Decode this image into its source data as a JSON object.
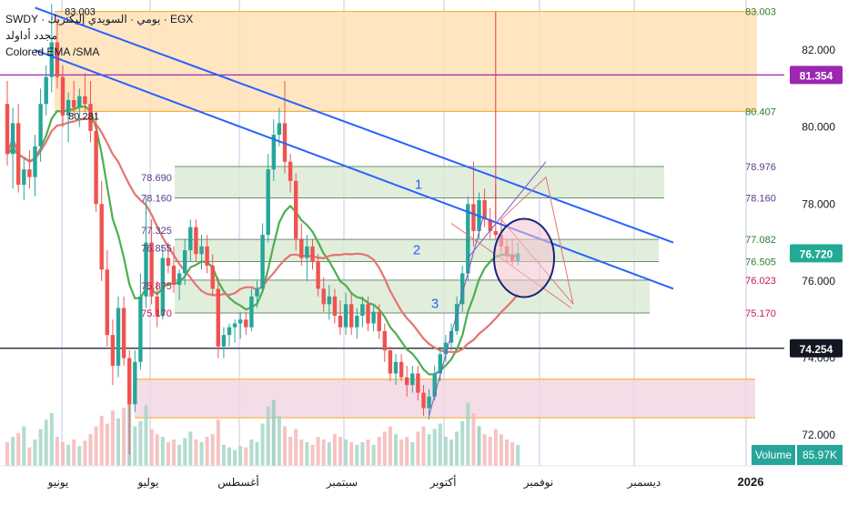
{
  "legend": {
    "symbol_line": "SWDY · يومي · السويدي إليكتريك · EGX",
    "second_line": "مجدد أداولد",
    "indicator": "Colored EMA /SMA"
  },
  "chart_data": {
    "type": "candlestick",
    "symbol": "SWDY",
    "exchange": "EGX",
    "ylim": [
      71.2,
      83.3
    ],
    "price_ticks": [
      "82.000",
      "80.000",
      "78.000",
      "76.000",
      "74.000",
      "72.000"
    ],
    "price_tick_values": [
      82,
      80,
      78,
      76,
      74,
      72
    ],
    "time_labels": [
      "يونيو",
      "يوليو",
      "أغسطس",
      "سبتمبر",
      "أكتوبر",
      "نوفمبر",
      "ديسمبر",
      "2026"
    ],
    "price_badges": [
      {
        "label": "81.354",
        "value": 81.354,
        "color": "#9c27b0"
      },
      {
        "label": "76.720",
        "value": 76.72,
        "color": "#22ab94"
      },
      {
        "label": "74.254",
        "value": 74.254,
        "color": "#131722"
      }
    ],
    "horizontal_lines": [
      {
        "value": 81.354,
        "color": "#9c27b0"
      },
      {
        "value": 74.254,
        "color": "#131722"
      }
    ],
    "zones": [
      {
        "name": "orange",
        "top": 83.003,
        "bottom": 80.407,
        "fill": "#ffe0b2",
        "stroke": "#f5a623"
      },
      {
        "name": "green-1",
        "top": 78.976,
        "bottom": 78.16,
        "fill": "#d9ead3",
        "stroke": "#6d8f6d"
      },
      {
        "name": "green-2",
        "top": 77.082,
        "bottom": 76.505,
        "fill": "#d9ead3",
        "stroke": "#6d8f6d"
      },
      {
        "name": "green-3",
        "top": 76.023,
        "bottom": 75.17,
        "fill": "#d9ead3",
        "stroke": "#6d8f6d"
      },
      {
        "name": "pink",
        "top": 73.45,
        "bottom": 72.45,
        "fill": "#f3d4e1",
        "stroke": "#f5a623"
      }
    ],
    "level_labels": [
      {
        "text": "83.003",
        "value": 83.003,
        "side": "right",
        "color": "#2e7d32"
      },
      {
        "text": "80.407",
        "value": 80.407,
        "side": "right",
        "color": "#2e7d32"
      },
      {
        "text": "78.976",
        "value": 78.976,
        "side": "right",
        "color": "#5b3a8c"
      },
      {
        "text": "78.160",
        "value": 78.16,
        "side": "right",
        "color": "#5b3a8c"
      },
      {
        "text": "77.082",
        "value": 77.082,
        "side": "right",
        "color": "#2e7d32"
      },
      {
        "text": "76.505",
        "value": 76.505,
        "side": "right",
        "color": "#2e7d32"
      },
      {
        "text": "76.023",
        "value": 76.023,
        "side": "right",
        "color": "#c2185b"
      },
      {
        "text": "75.170",
        "value": 75.17,
        "side": "right",
        "color": "#c2185b"
      },
      {
        "text": "78.690",
        "value": 78.69,
        "side": "left",
        "color": "#5b3a8c"
      },
      {
        "text": "78.160",
        "value": 78.16,
        "side": "left",
        "color": "#5b3a8c"
      },
      {
        "text": "77.325",
        "value": 77.325,
        "side": "left",
        "color": "#5b3a8c"
      },
      {
        "text": "76.855",
        "value": 76.855,
        "side": "left",
        "color": "#5b3a8c"
      },
      {
        "text": "75.875",
        "value": 75.875,
        "side": "left",
        "color": "#c2185b"
      },
      {
        "text": "75.170",
        "value": 75.17,
        "side": "left",
        "color": "#c2185b"
      },
      {
        "text": "80.281",
        "value": 80.281,
        "side": "left",
        "color": "#131722"
      },
      {
        "text": "83.003",
        "value": 83.003,
        "side": "left",
        "color": "#131722"
      }
    ],
    "zone_numbers": [
      "1",
      "2",
      "3"
    ],
    "trendlines": [
      {
        "from": [
          5,
          83.1
        ],
        "to": [
          120,
          77.0
        ],
        "color": "#2962ff"
      },
      {
        "from": [
          5,
          82.0
        ],
        "to": [
          120,
          75.8
        ],
        "color": "#2962ff"
      }
    ],
    "ohlc": [
      [
        80.6,
        81.2,
        79.0,
        79.3
      ],
      [
        79.3,
        80.5,
        78.4,
        80.1
      ],
      [
        80.1,
        80.6,
        78.3,
        78.5
      ],
      [
        78.5,
        79.2,
        78.1,
        78.9
      ],
      [
        78.9,
        79.4,
        78.4,
        78.7
      ],
      [
        78.7,
        79.8,
        78.2,
        79.5
      ],
      [
        79.5,
        81.0,
        79.1,
        80.6
      ],
      [
        80.6,
        81.6,
        80.3,
        81.3
      ],
      [
        81.3,
        83.2,
        80.9,
        82.2
      ],
      [
        82.2,
        82.8,
        81.0,
        81.3
      ],
      [
        81.3,
        81.6,
        80.0,
        80.3
      ],
      [
        80.3,
        80.9,
        79.6,
        80.7
      ],
      [
        80.7,
        81.2,
        80.3,
        80.5
      ],
      [
        80.5,
        81.0,
        80.0,
        80.8
      ],
      [
        80.8,
        81.4,
        80.4,
        80.6
      ],
      [
        80.6,
        81.2,
        79.6,
        79.9
      ],
      [
        79.9,
        80.4,
        77.8,
        78.0
      ],
      [
        78.0,
        78.6,
        76.0,
        76.3
      ],
      [
        76.3,
        76.8,
        74.3,
        74.6
      ],
      [
        74.6,
        75.0,
        73.3,
        73.8
      ],
      [
        73.8,
        75.6,
        73.5,
        75.3
      ],
      [
        75.3,
        75.6,
        73.8,
        74.0
      ],
      [
        74.0,
        74.2,
        71.5,
        72.8
      ],
      [
        72.8,
        74.2,
        72.6,
        73.9
      ],
      [
        73.9,
        76.2,
        73.7,
        75.6
      ],
      [
        75.6,
        78.2,
        75.3,
        77.0
      ],
      [
        77.0,
        77.6,
        75.4,
        75.6
      ],
      [
        75.6,
        76.0,
        74.8,
        75.1
      ],
      [
        75.1,
        76.9,
        75.0,
        76.6
      ],
      [
        76.6,
        77.0,
        76.2,
        76.4
      ],
      [
        76.4,
        76.9,
        75.7,
        75.9
      ],
      [
        75.9,
        76.3,
        75.5,
        76.2
      ],
      [
        76.2,
        77.1,
        75.9,
        76.8
      ],
      [
        76.8,
        77.6,
        76.5,
        77.4
      ],
      [
        77.4,
        77.6,
        76.5,
        76.7
      ],
      [
        76.7,
        77.2,
        76.3,
        76.9
      ],
      [
        76.9,
        77.2,
        76.2,
        76.4
      ],
      [
        76.4,
        76.7,
        75.6,
        75.8
      ],
      [
        75.8,
        76.1,
        74.0,
        74.3
      ],
      [
        74.3,
        74.8,
        74.0,
        74.6
      ],
      [
        74.6,
        74.9,
        74.3,
        74.8
      ],
      [
        74.8,
        75.0,
        74.4,
        74.9
      ],
      [
        74.9,
        75.2,
        74.5,
        75.0
      ],
      [
        75.0,
        75.2,
        74.6,
        74.8
      ],
      [
        74.8,
        75.8,
        74.7,
        75.6
      ],
      [
        75.6,
        76.0,
        75.3,
        75.8
      ],
      [
        75.8,
        77.5,
        75.7,
        77.2
      ],
      [
        77.2,
        79.3,
        77.0,
        78.9
      ],
      [
        78.9,
        80.2,
        78.6,
        79.8
      ],
      [
        79.8,
        80.5,
        79.5,
        80.1
      ],
      [
        80.1,
        81.2,
        78.8,
        79.1
      ],
      [
        79.1,
        79.3,
        78.3,
        78.6
      ],
      [
        78.6,
        78.8,
        76.8,
        77.1
      ],
      [
        77.1,
        77.5,
        76.4,
        76.6
      ],
      [
        76.6,
        77.2,
        76.0,
        76.9
      ],
      [
        76.9,
        77.1,
        76.3,
        76.5
      ],
      [
        76.5,
        76.7,
        75.6,
        75.8
      ],
      [
        75.8,
        76.1,
        75.2,
        75.4
      ],
      [
        75.4,
        75.9,
        75.0,
        75.6
      ],
      [
        75.6,
        75.8,
        74.9,
        75.1
      ],
      [
        75.1,
        75.5,
        74.6,
        74.8
      ],
      [
        74.8,
        75.7,
        74.6,
        75.4
      ],
      [
        75.4,
        75.7,
        74.6,
        74.8
      ],
      [
        74.8,
        75.3,
        74.5,
        75.1
      ],
      [
        75.1,
        75.6,
        74.8,
        75.4
      ],
      [
        75.4,
        75.6,
        74.7,
        74.9
      ],
      [
        74.9,
        75.4,
        74.7,
        75.2
      ],
      [
        75.2,
        75.4,
        74.5,
        74.7
      ],
      [
        74.7,
        74.9,
        73.9,
        74.2
      ],
      [
        74.2,
        74.3,
        73.4,
        73.6
      ],
      [
        73.6,
        74.1,
        73.3,
        73.9
      ],
      [
        73.9,
        74.1,
        73.4,
        73.5
      ],
      [
        73.5,
        73.8,
        73.0,
        73.3
      ],
      [
        73.3,
        73.8,
        73.1,
        73.6
      ],
      [
        73.6,
        73.8,
        72.9,
        73.1
      ],
      [
        73.1,
        73.3,
        72.5,
        72.7
      ],
      [
        72.7,
        73.2,
        72.4,
        73.0
      ],
      [
        73.0,
        73.8,
        72.9,
        73.6
      ],
      [
        73.6,
        74.3,
        73.4,
        74.1
      ],
      [
        74.1,
        74.6,
        73.9,
        74.4
      ],
      [
        74.4,
        74.9,
        74.2,
        74.7
      ],
      [
        74.7,
        75.6,
        74.6,
        75.4
      ],
      [
        75.4,
        76.4,
        75.2,
        76.2
      ],
      [
        76.2,
        78.2,
        76.0,
        78.0
      ],
      [
        78.0,
        79.1,
        76.9,
        77.3
      ],
      [
        77.3,
        78.3,
        77.1,
        78.1
      ],
      [
        78.1,
        78.4,
        77.4,
        77.6
      ],
      [
        77.6,
        77.9,
        77.1,
        77.3
      ],
      [
        77.3,
        78.5,
        77.1,
        77.2
      ],
      [
        77.2,
        77.6,
        76.7,
        76.9
      ],
      [
        76.9,
        77.1,
        76.5,
        76.7
      ],
      [
        76.7,
        77.1,
        76.4,
        76.5
      ],
      [
        76.5,
        77.0,
        76.4,
        76.72
      ]
    ],
    "ema_series": [
      {
        "name": "EMA",
        "period": 10,
        "color": "#4caf50"
      },
      {
        "name": "SMA",
        "period": 20,
        "color": "#e57373"
      }
    ],
    "volume": {
      "label": "Volume",
      "value": "85.97K",
      "values": [
        18,
        22,
        25,
        30,
        14,
        20,
        28,
        35,
        40,
        22,
        18,
        16,
        20,
        15,
        19,
        24,
        30,
        38,
        32,
        42,
        36,
        44,
        60,
        30,
        34,
        46,
        28,
        24,
        22,
        18,
        20,
        16,
        21,
        26,
        20,
        18,
        22,
        24,
        35,
        16,
        14,
        12,
        15,
        14,
        20,
        18,
        32,
        45,
        50,
        38,
        30,
        22,
        28,
        20,
        18,
        16,
        22,
        20,
        18,
        24,
        22,
        20,
        18,
        16,
        18,
        20,
        16,
        22,
        26,
        30,
        24,
        20,
        22,
        18,
        26,
        30,
        24,
        28,
        32,
        22,
        20,
        26,
        34,
        48,
        40,
        30,
        24,
        22,
        28,
        24,
        20,
        18,
        16
      ],
      "highlighted": [
        {
          "index": 22,
          "color": "#9ec8c0"
        },
        {
          "index": 48,
          "color": "#9ec8c0"
        },
        {
          "index": 85,
          "color": "#9ec8c0"
        }
      ]
    }
  }
}
